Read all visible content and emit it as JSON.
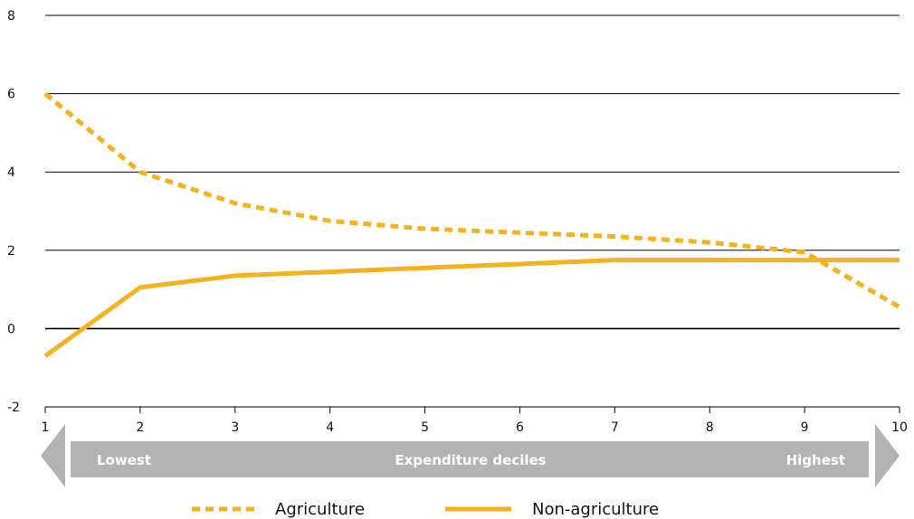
{
  "chart_data": {
    "type": "line",
    "x": [
      1,
      2,
      3,
      4,
      5,
      6,
      7,
      8,
      9,
      10
    ],
    "xlim": [
      1,
      10
    ],
    "ylim": [
      -2,
      8
    ],
    "yticks": [
      -2,
      0,
      2,
      4,
      6,
      8
    ],
    "grid": "horizontal",
    "series": [
      {
        "name": "Agriculture",
        "style": "dashed",
        "color": "#F5B21F",
        "values": [
          6.0,
          4.0,
          3.2,
          2.75,
          2.55,
          2.45,
          2.35,
          2.2,
          1.95,
          0.55
        ]
      },
      {
        "name": "Non-agriculture",
        "style": "solid",
        "color": "#F5B21F",
        "values": [
          -0.7,
          1.05,
          1.35,
          1.45,
          1.55,
          1.65,
          1.75,
          1.75,
          1.75,
          1.75
        ]
      }
    ],
    "axis_band": {
      "left_label": "Lowest",
      "center_label": "Expenditure deciles",
      "right_label": "Highest",
      "color": "#b3b3b3"
    },
    "legend_position": "bottom-center"
  }
}
